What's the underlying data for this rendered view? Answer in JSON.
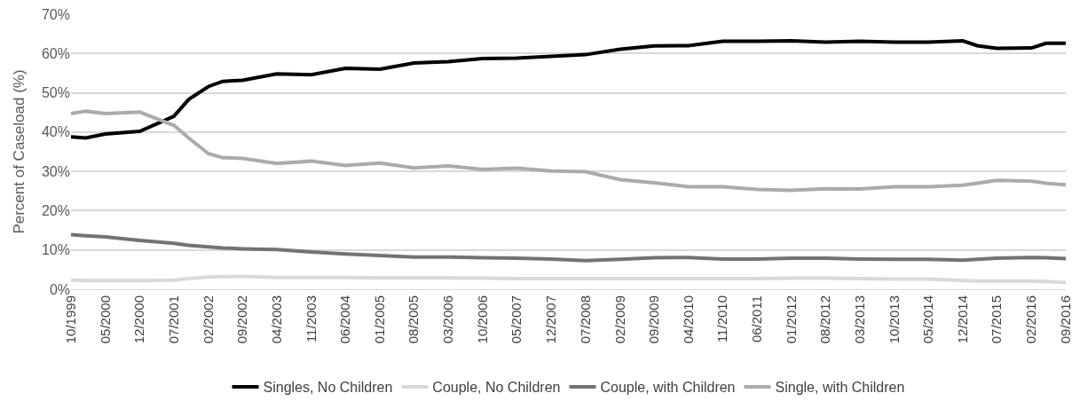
{
  "chart_data": {
    "type": "line",
    "ylabel": "Percent of Caseload (%)",
    "x": [
      "1999-10",
      "2000-01",
      "2000-05",
      "2000-12",
      "2001-07",
      "2001-10",
      "2002-02",
      "2002-05",
      "2002-09",
      "2003-04",
      "2003-11",
      "2004-06",
      "2005-01",
      "2005-08",
      "2006-03",
      "2006-10",
      "2007-05",
      "2007-12",
      "2008-07",
      "2009-02",
      "2009-09",
      "2010-04",
      "2010-11",
      "2011-06",
      "2012-01",
      "2012-08",
      "2013-03",
      "2013-10",
      "2014-05",
      "2014-12",
      "2015-03",
      "2015-07",
      "2016-02",
      "2016-05",
      "2016-09"
    ],
    "series": [
      {
        "name": "Singles, No Children",
        "color": "#000000",
        "values": [
          38.8,
          38.5,
          39.5,
          40.2,
          44,
          48.3,
          51.6,
          52.9,
          53.2,
          54.8,
          54.6,
          56.2,
          56,
          57.6,
          57.9,
          58.7,
          58.8,
          59.3,
          59.7,
          61.1,
          61.9,
          62,
          63.1,
          63.1,
          63.2,
          62.9,
          63.1,
          62.9,
          62.9,
          63.2,
          62,
          61.3,
          61.4,
          62.6,
          62.6
        ]
      },
      {
        "name": "Couple, No Children",
        "color": "#d9d9d9",
        "values": [
          2.3,
          2.2,
          2.2,
          2.2,
          2.3,
          2.7,
          3.1,
          3.2,
          3.3,
          3.0,
          3.0,
          3.0,
          2.9,
          2.9,
          2.9,
          2.8,
          2.7,
          2.7,
          2.7,
          2.7,
          2.7,
          2.7,
          2.7,
          2.7,
          2.8,
          2.8,
          2.7,
          2.6,
          2.6,
          2.2,
          2.1,
          2.1,
          2.1,
          2.0,
          1.7
        ]
      },
      {
        "name": "Couple, with Children",
        "color": "#767171",
        "values": [
          13.9,
          13.6,
          13.3,
          12.4,
          11.7,
          11.2,
          10.8,
          10.5,
          10.3,
          10.1,
          9.5,
          9,
          8.6,
          8.2,
          8.2,
          8,
          7.9,
          7.7,
          7.3,
          7.6,
          8,
          8.1,
          7.7,
          7.7,
          7.9,
          7.9,
          7.7,
          7.6,
          7.6,
          7.4,
          7.6,
          7.9,
          8.1,
          8.0,
          7.8
        ]
      },
      {
        "name": "Single, with Children",
        "color": "#aeaaaa",
        "values": [
          44.7,
          45.3,
          44.7,
          45.1,
          41.7,
          38.5,
          34.5,
          33.5,
          33.3,
          32,
          32.6,
          31.5,
          32.1,
          30.9,
          31.4,
          30.5,
          30.8,
          30.1,
          29.9,
          27.9,
          27.1,
          26.1,
          26.1,
          25.4,
          25.2,
          25.6,
          25.5,
          26.1,
          26.1,
          26.5,
          27.0,
          27.7,
          27.5,
          27.0,
          26.6
        ]
      }
    ],
    "xlim": [
      "1999-10",
      "2016-09"
    ],
    "xticks": [
      {
        "value": "1999-10",
        "label": "10/1999"
      },
      {
        "value": "2000-05",
        "label": "05/2000"
      },
      {
        "value": "2000-12",
        "label": "12/2000"
      },
      {
        "value": "2001-07",
        "label": "07/2001"
      },
      {
        "value": "2002-02",
        "label": "02/2002"
      },
      {
        "value": "2002-09",
        "label": "09/2002"
      },
      {
        "value": "2003-04",
        "label": "04/2003"
      },
      {
        "value": "2003-11",
        "label": "11/2003"
      },
      {
        "value": "2004-06",
        "label": "06/2004"
      },
      {
        "value": "2005-01",
        "label": "01/2005"
      },
      {
        "value": "2005-08",
        "label": "08/2005"
      },
      {
        "value": "2006-03",
        "label": "03/2006"
      },
      {
        "value": "2006-10",
        "label": "10/2006"
      },
      {
        "value": "2007-05",
        "label": "05/2007"
      },
      {
        "value": "2007-12",
        "label": "12/2007"
      },
      {
        "value": "2008-07",
        "label": "07/2008"
      },
      {
        "value": "2009-02",
        "label": "02/2009"
      },
      {
        "value": "2009-09",
        "label": "09/2009"
      },
      {
        "value": "2010-04",
        "label": "04/2010"
      },
      {
        "value": "2010-11",
        "label": "11/2010"
      },
      {
        "value": "2011-06",
        "label": "06/2011"
      },
      {
        "value": "2012-01",
        "label": "01/2012"
      },
      {
        "value": "2012-08",
        "label": "08/2012"
      },
      {
        "value": "2013-03",
        "label": "03/2013"
      },
      {
        "value": "2013-10",
        "label": "10/2013"
      },
      {
        "value": "2014-05",
        "label": "05/2014"
      },
      {
        "value": "2014-12",
        "label": "12/2014"
      },
      {
        "value": "2015-07",
        "label": "07/2015"
      },
      {
        "value": "2016-02",
        "label": "02/2016"
      },
      {
        "value": "2016-09",
        "label": "09/2016"
      }
    ],
    "ylim": [
      0,
      70
    ],
    "yticks": [
      {
        "value": 0,
        "label": "0%"
      },
      {
        "value": 10,
        "label": "10%"
      },
      {
        "value": 20,
        "label": "20%"
      },
      {
        "value": 30,
        "label": "30%"
      },
      {
        "value": 40,
        "label": "40%"
      },
      {
        "value": 50,
        "label": "50%"
      },
      {
        "value": 60,
        "label": "60%"
      },
      {
        "value": 70,
        "label": "70%"
      }
    ],
    "grid": "y",
    "legend": "bottom",
    "marker": "none",
    "line_style": "solid"
  }
}
